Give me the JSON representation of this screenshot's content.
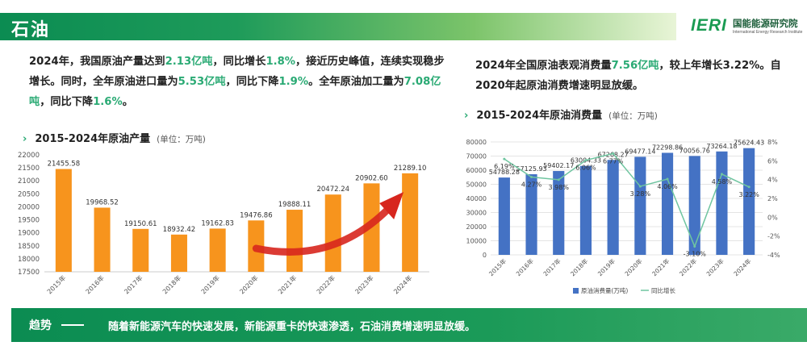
{
  "header": {
    "title": "石油"
  },
  "logo": {
    "mark": "IERI",
    "cn": "国能能源研究院",
    "en": "International Energy Research Institute"
  },
  "colors": {
    "accent": "#2aaa74",
    "orange": "#f7941d",
    "blue": "#4472c4",
    "line": "#6fc5a0",
    "banner": "#0b8c52"
  },
  "para_left": {
    "p1": "2024年，我国原油产量达到",
    "v1": "2.13亿吨",
    "p2": "，同比增长",
    "v2": "1.8%",
    "p3": "，接近历史峰值，连续实现稳步增长。同时，全年原油进口量为",
    "v3": "5.53亿吨",
    "p4": "，同比下降",
    "v4": "1.9%",
    "p5": "。全年原油加工量为",
    "v5": "7.08亿吨",
    "p6": "，同比下降",
    "v6": "1.6%",
    "p7": "。"
  },
  "para_right": {
    "p1": "2024年全国原油表观消费量",
    "v1": "7.56亿吨",
    "p2": "，较上年增长3.22%。自2020年起原油消费增速明显放缓。"
  },
  "chart_left_title": {
    "chevron": "›",
    "text": "2015-2024年原油产量",
    "unit": "(单位：万吨)"
  },
  "chart_right_title": {
    "chevron": "›",
    "text": "2015-2024年原油消费量",
    "unit": "(单位：万吨)"
  },
  "banner": {
    "label": "趋势",
    "text": "随着新能源汽车的快速发展，新能源重卡的快速渗透，石油消费增速明显放缓。"
  },
  "chart_data": [
    {
      "type": "bar",
      "title": "2015-2024年原油产量",
      "unit": "(单位：万吨)",
      "categories": [
        "2015年",
        "2016年",
        "2017年",
        "2018年",
        "2019年",
        "2020年",
        "2021年",
        "2022年",
        "2023年",
        "2024年"
      ],
      "values": [
        21455.58,
        19968.52,
        19150.61,
        18932.42,
        19162.83,
        19476.86,
        19888.11,
        20472.24,
        20902.6,
        21289.1
      ],
      "labels": [
        "21455.58",
        "19968.52",
        "19150.61",
        "18932.42",
        "19162.83",
        "19476.86",
        "19888.11",
        "20472.24",
        "20902.60",
        "21289.10"
      ],
      "ylim": [
        17500,
        22000
      ],
      "yticks": [
        "22000",
        "21500",
        "21000",
        "20500",
        "20000",
        "19500",
        "19000",
        "18500",
        "18000",
        "17500"
      ],
      "color": "#f7941d",
      "grid": false
    },
    {
      "type": "bar",
      "title": "2015-2024年原油消费量",
      "unit": "(单位：万吨)",
      "categories": [
        "2015年",
        "2016年",
        "2017年",
        "2018年",
        "2019年",
        "2020年",
        "2021年",
        "2022年",
        "2023年",
        "2024年"
      ],
      "series": [
        {
          "name": "原油消费量(万吨)",
          "type": "bar",
          "values": [
            54788.28,
            57125.93,
            59402.17,
            63004.33,
            67268.27,
            69477.14,
            72298.86,
            70056.76,
            73264.18,
            75624.43
          ],
          "labels": [
            "54788.28",
            "57125.93",
            "59402.17",
            "63004.33",
            "67268.27",
            "69477.14",
            "72298.86",
            "70056.76",
            "73264.18",
            "75624.43"
          ],
          "color": "#4472c4"
        },
        {
          "name": "同比增长",
          "type": "line",
          "axis": "right",
          "values": [
            6.19,
            4.27,
            3.98,
            6.06,
            6.77,
            3.28,
            4.06,
            -3.1,
            4.58,
            3.22
          ],
          "labels": [
            "6.19%",
            "4.27%",
            "3.98%",
            "6.06%",
            "6.77%",
            "3.28%",
            "4.06%",
            "-3.10%",
            "4.58%",
            "3.22%"
          ],
          "color": "#6fc5a0"
        }
      ],
      "ylim": [
        0,
        80000
      ],
      "yticks": [
        "80000",
        "70000",
        "60000",
        "50000",
        "40000",
        "30000",
        "20000",
        "10000",
        "0"
      ],
      "y2lim": [
        -4,
        8
      ],
      "y2ticks": [
        "8%",
        "6%",
        "4%",
        "2%",
        "0%",
        "-2%",
        "-4%"
      ],
      "legend_position": "bottom",
      "grid": true
    }
  ]
}
